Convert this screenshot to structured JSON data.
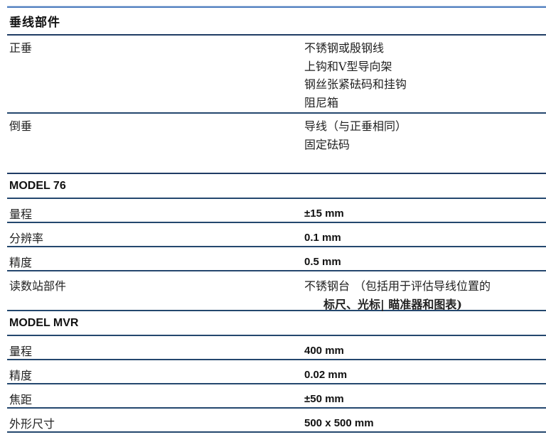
{
  "colors": {
    "rule_navy": "#1f3c64",
    "rule_top_blue": "#4e7dbe",
    "rule_top_light": "#c7d7eb",
    "text": "#1b1b1b"
  },
  "plumb_table": {
    "heading": "垂线部件",
    "rows": [
      {
        "label": "正垂",
        "values": [
          "不锈钢或殷钢线",
          "上钩和V型导向架",
          "钢丝张紧砝码和挂钩",
          "阻尼箱"
        ]
      },
      {
        "label": "倒垂",
        "values": [
          "导线（与正垂相同）",
          "固定砝码"
        ]
      }
    ]
  },
  "model76": {
    "heading": "MODEL 76",
    "rows": [
      {
        "label": "量程",
        "value": "±15 mm"
      },
      {
        "label": "分辨率",
        "value": "0.1 mm"
      },
      {
        "label": "精度",
        "value": "0.5 mm"
      },
      {
        "label": "读数站部件",
        "value": "不锈钢台",
        "note_line1": "（包括用于评估导线位置的",
        "note_line2": "标尺、光标| 瞄准器和图表)"
      }
    ]
  },
  "modelMVR": {
    "heading": "MODEL MVR",
    "rows": [
      {
        "label": "量程",
        "value": "400 mm"
      },
      {
        "label": "精度",
        "value": "0.02 mm"
      },
      {
        "label": "焦距",
        "value": "±50 mm"
      },
      {
        "label": "外形尺寸",
        "value": "500 x 500 mm"
      }
    ]
  }
}
